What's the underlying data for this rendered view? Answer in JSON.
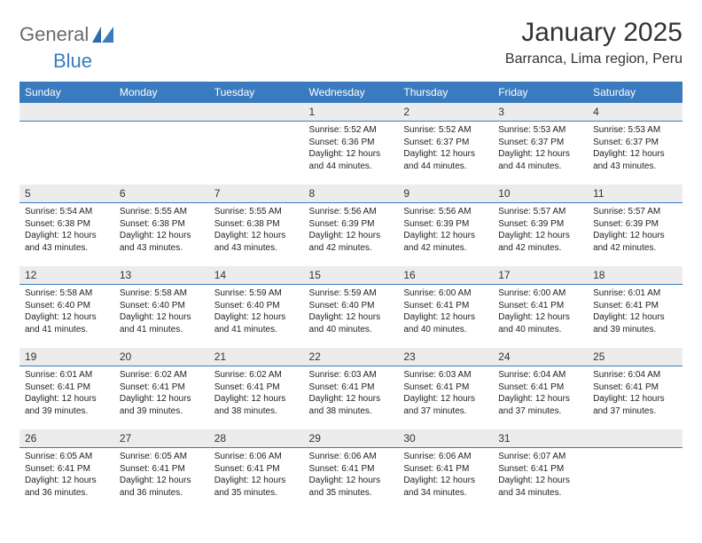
{
  "logo": {
    "word1": "General",
    "word2": "Blue"
  },
  "title": "January 2025",
  "location": "Barranca, Lima region, Peru",
  "weekday_headers": [
    "Sunday",
    "Monday",
    "Tuesday",
    "Wednesday",
    "Thursday",
    "Friday",
    "Saturday"
  ],
  "colors": {
    "header_bg": "#3a7bbf",
    "header_text": "#ffffff",
    "daynum_bg": "#ececec",
    "daynum_border": "#3a7bbf",
    "body_text": "#222222",
    "logo_gray": "#6b6b6b",
    "logo_blue": "#3a7bbf",
    "page_bg": "#ffffff"
  },
  "typography": {
    "title_fontsize": 30,
    "location_fontsize": 16,
    "header_fontsize": 12,
    "daynum_fontsize": 12,
    "data_fontsize": 10,
    "logo_fontsize": 22
  },
  "weeks": [
    [
      {
        "num": "",
        "sunrise": "",
        "sunset": "",
        "daylight": ""
      },
      {
        "num": "",
        "sunrise": "",
        "sunset": "",
        "daylight": ""
      },
      {
        "num": "",
        "sunrise": "",
        "sunset": "",
        "daylight": ""
      },
      {
        "num": "1",
        "sunrise": "Sunrise: 5:52 AM",
        "sunset": "Sunset: 6:36 PM",
        "daylight": "Daylight: 12 hours and 44 minutes."
      },
      {
        "num": "2",
        "sunrise": "Sunrise: 5:52 AM",
        "sunset": "Sunset: 6:37 PM",
        "daylight": "Daylight: 12 hours and 44 minutes."
      },
      {
        "num": "3",
        "sunrise": "Sunrise: 5:53 AM",
        "sunset": "Sunset: 6:37 PM",
        "daylight": "Daylight: 12 hours and 44 minutes."
      },
      {
        "num": "4",
        "sunrise": "Sunrise: 5:53 AM",
        "sunset": "Sunset: 6:37 PM",
        "daylight": "Daylight: 12 hours and 43 minutes."
      }
    ],
    [
      {
        "num": "5",
        "sunrise": "Sunrise: 5:54 AM",
        "sunset": "Sunset: 6:38 PM",
        "daylight": "Daylight: 12 hours and 43 minutes."
      },
      {
        "num": "6",
        "sunrise": "Sunrise: 5:55 AM",
        "sunset": "Sunset: 6:38 PM",
        "daylight": "Daylight: 12 hours and 43 minutes."
      },
      {
        "num": "7",
        "sunrise": "Sunrise: 5:55 AM",
        "sunset": "Sunset: 6:38 PM",
        "daylight": "Daylight: 12 hours and 43 minutes."
      },
      {
        "num": "8",
        "sunrise": "Sunrise: 5:56 AM",
        "sunset": "Sunset: 6:39 PM",
        "daylight": "Daylight: 12 hours and 42 minutes."
      },
      {
        "num": "9",
        "sunrise": "Sunrise: 5:56 AM",
        "sunset": "Sunset: 6:39 PM",
        "daylight": "Daylight: 12 hours and 42 minutes."
      },
      {
        "num": "10",
        "sunrise": "Sunrise: 5:57 AM",
        "sunset": "Sunset: 6:39 PM",
        "daylight": "Daylight: 12 hours and 42 minutes."
      },
      {
        "num": "11",
        "sunrise": "Sunrise: 5:57 AM",
        "sunset": "Sunset: 6:39 PM",
        "daylight": "Daylight: 12 hours and 42 minutes."
      }
    ],
    [
      {
        "num": "12",
        "sunrise": "Sunrise: 5:58 AM",
        "sunset": "Sunset: 6:40 PM",
        "daylight": "Daylight: 12 hours and 41 minutes."
      },
      {
        "num": "13",
        "sunrise": "Sunrise: 5:58 AM",
        "sunset": "Sunset: 6:40 PM",
        "daylight": "Daylight: 12 hours and 41 minutes."
      },
      {
        "num": "14",
        "sunrise": "Sunrise: 5:59 AM",
        "sunset": "Sunset: 6:40 PM",
        "daylight": "Daylight: 12 hours and 41 minutes."
      },
      {
        "num": "15",
        "sunrise": "Sunrise: 5:59 AM",
        "sunset": "Sunset: 6:40 PM",
        "daylight": "Daylight: 12 hours and 40 minutes."
      },
      {
        "num": "16",
        "sunrise": "Sunrise: 6:00 AM",
        "sunset": "Sunset: 6:41 PM",
        "daylight": "Daylight: 12 hours and 40 minutes."
      },
      {
        "num": "17",
        "sunrise": "Sunrise: 6:00 AM",
        "sunset": "Sunset: 6:41 PM",
        "daylight": "Daylight: 12 hours and 40 minutes."
      },
      {
        "num": "18",
        "sunrise": "Sunrise: 6:01 AM",
        "sunset": "Sunset: 6:41 PM",
        "daylight": "Daylight: 12 hours and 39 minutes."
      }
    ],
    [
      {
        "num": "19",
        "sunrise": "Sunrise: 6:01 AM",
        "sunset": "Sunset: 6:41 PM",
        "daylight": "Daylight: 12 hours and 39 minutes."
      },
      {
        "num": "20",
        "sunrise": "Sunrise: 6:02 AM",
        "sunset": "Sunset: 6:41 PM",
        "daylight": "Daylight: 12 hours and 39 minutes."
      },
      {
        "num": "21",
        "sunrise": "Sunrise: 6:02 AM",
        "sunset": "Sunset: 6:41 PM",
        "daylight": "Daylight: 12 hours and 38 minutes."
      },
      {
        "num": "22",
        "sunrise": "Sunrise: 6:03 AM",
        "sunset": "Sunset: 6:41 PM",
        "daylight": "Daylight: 12 hours and 38 minutes."
      },
      {
        "num": "23",
        "sunrise": "Sunrise: 6:03 AM",
        "sunset": "Sunset: 6:41 PM",
        "daylight": "Daylight: 12 hours and 37 minutes."
      },
      {
        "num": "24",
        "sunrise": "Sunrise: 6:04 AM",
        "sunset": "Sunset: 6:41 PM",
        "daylight": "Daylight: 12 hours and 37 minutes."
      },
      {
        "num": "25",
        "sunrise": "Sunrise: 6:04 AM",
        "sunset": "Sunset: 6:41 PM",
        "daylight": "Daylight: 12 hours and 37 minutes."
      }
    ],
    [
      {
        "num": "26",
        "sunrise": "Sunrise: 6:05 AM",
        "sunset": "Sunset: 6:41 PM",
        "daylight": "Daylight: 12 hours and 36 minutes."
      },
      {
        "num": "27",
        "sunrise": "Sunrise: 6:05 AM",
        "sunset": "Sunset: 6:41 PM",
        "daylight": "Daylight: 12 hours and 36 minutes."
      },
      {
        "num": "28",
        "sunrise": "Sunrise: 6:06 AM",
        "sunset": "Sunset: 6:41 PM",
        "daylight": "Daylight: 12 hours and 35 minutes."
      },
      {
        "num": "29",
        "sunrise": "Sunrise: 6:06 AM",
        "sunset": "Sunset: 6:41 PM",
        "daylight": "Daylight: 12 hours and 35 minutes."
      },
      {
        "num": "30",
        "sunrise": "Sunrise: 6:06 AM",
        "sunset": "Sunset: 6:41 PM",
        "daylight": "Daylight: 12 hours and 34 minutes."
      },
      {
        "num": "31",
        "sunrise": "Sunrise: 6:07 AM",
        "sunset": "Sunset: 6:41 PM",
        "daylight": "Daylight: 12 hours and 34 minutes."
      },
      {
        "num": "",
        "sunrise": "",
        "sunset": "",
        "daylight": ""
      }
    ]
  ]
}
